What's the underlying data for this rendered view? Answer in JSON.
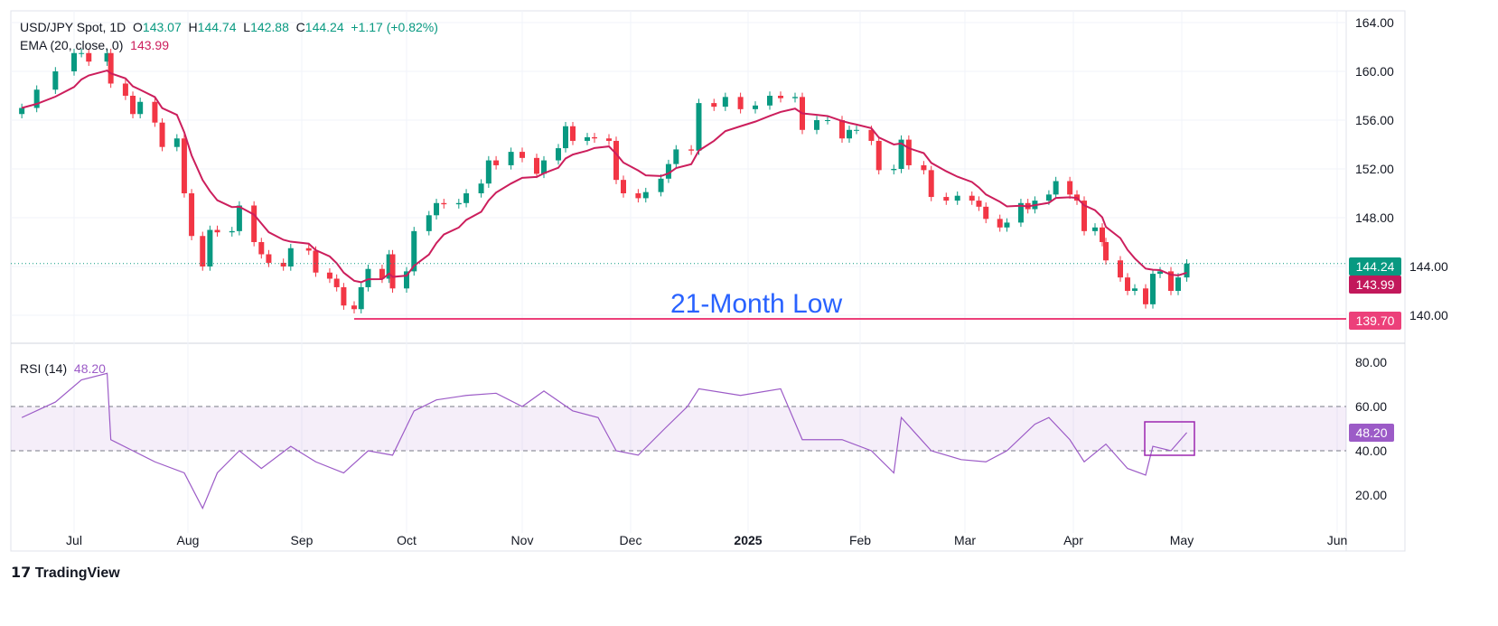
{
  "header": {
    "symbol": "USD/JPY Spot, 1D",
    "open_label": "O",
    "open": "143.07",
    "high_label": "H",
    "high": "144.74",
    "low_label": "L",
    "low": "142.88",
    "close_label": "C",
    "close": "144.24",
    "change": "+1.17 (+0.82%)",
    "ema_label": "EMA (20, close, 0)",
    "ema_value": "143.99",
    "rsi_label": "RSI (14)",
    "rsi_value": "48.20"
  },
  "tags": {
    "last": "144.24",
    "ema": "143.99",
    "support": "139.70",
    "rsi": "48.20"
  },
  "annotation": "21-Month Low",
  "brand": "TradingView",
  "colors": {
    "up": "#089981",
    "down": "#f23645",
    "ema": "#cc1e5c",
    "support": "#ec407a",
    "rsi": "#9c5bc7",
    "annotation": "#2962ff"
  },
  "chart_data": [
    {
      "type": "candlestick",
      "title": "USD/JPY Spot, 1D",
      "ylim": [
        136,
        166
      ],
      "y_ticks": [
        "164.00",
        "160.00",
        "156.00",
        "152.00",
        "148.00",
        "144.00",
        "140.00"
      ],
      "x_ticks": [
        "Jul",
        "Aug",
        "Sep",
        "Oct",
        "Nov",
        "Dec",
        "2025",
        "Feb",
        "Mar",
        "Apr",
        "May",
        "Jun"
      ],
      "support_level": 139.7,
      "closes": [
        [
          "2024-06-17",
          157.0
        ],
        [
          "2024-06-21",
          158.5
        ],
        [
          "2024-06-26",
          160.0
        ],
        [
          "2024-07-01",
          161.5
        ],
        [
          "2024-07-03",
          161.5
        ],
        [
          "2024-07-05",
          160.8
        ],
        [
          "2024-07-10",
          161.5
        ],
        [
          "2024-07-11",
          159.0
        ],
        [
          "2024-07-15",
          158.0
        ],
        [
          "2024-07-17",
          156.5
        ],
        [
          "2024-07-19",
          157.5
        ],
        [
          "2024-07-23",
          155.8
        ],
        [
          "2024-07-25",
          153.8
        ],
        [
          "2024-07-29",
          154.5
        ],
        [
          "2024-07-31",
          150.0
        ],
        [
          "2024-08-02",
          146.5
        ],
        [
          "2024-08-05",
          144.0
        ],
        [
          "2024-08-07",
          147.0
        ],
        [
          "2024-08-09",
          146.8
        ],
        [
          "2024-08-13",
          146.9
        ],
        [
          "2024-08-15",
          149.0
        ],
        [
          "2024-08-19",
          146.0
        ],
        [
          "2024-08-21",
          145.0
        ],
        [
          "2024-08-23",
          144.3
        ],
        [
          "2024-08-27",
          144.0
        ],
        [
          "2024-08-29",
          145.5
        ],
        [
          "2024-09-03",
          145.3
        ],
        [
          "2024-09-05",
          143.5
        ],
        [
          "2024-09-09",
          143.0
        ],
        [
          "2024-09-11",
          142.3
        ],
        [
          "2024-09-13",
          140.8
        ],
        [
          "2024-09-16",
          140.5
        ],
        [
          "2024-09-18",
          142.3
        ],
        [
          "2024-09-20",
          143.8
        ],
        [
          "2024-09-24",
          143.0
        ],
        [
          "2024-09-26",
          145.0
        ],
        [
          "2024-09-27",
          142.2
        ],
        [
          "2024-10-01",
          143.6
        ],
        [
          "2024-10-03",
          146.9
        ],
        [
          "2024-10-07",
          148.2
        ],
        [
          "2024-10-09",
          149.2
        ],
        [
          "2024-10-11",
          149.1
        ],
        [
          "2024-10-15",
          149.2
        ],
        [
          "2024-10-17",
          150.0
        ],
        [
          "2024-10-21",
          150.8
        ],
        [
          "2024-10-23",
          152.7
        ],
        [
          "2024-10-25",
          152.3
        ],
        [
          "2024-10-29",
          153.4
        ],
        [
          "2024-11-01",
          152.9
        ],
        [
          "2024-11-05",
          151.6
        ],
        [
          "2024-11-07",
          152.7
        ],
        [
          "2024-11-11",
          153.7
        ],
        [
          "2024-11-13",
          155.5
        ],
        [
          "2024-11-15",
          154.3
        ],
        [
          "2024-11-19",
          154.6
        ],
        [
          "2024-11-21",
          154.5
        ],
        [
          "2024-11-25",
          154.3
        ],
        [
          "2024-11-27",
          151.1
        ],
        [
          "2024-11-29",
          150.0
        ],
        [
          "2024-12-03",
          149.6
        ],
        [
          "2024-12-05",
          150.1
        ],
        [
          "2024-12-09",
          151.2
        ],
        [
          "2024-12-11",
          152.4
        ],
        [
          "2024-12-13",
          153.6
        ],
        [
          "2024-12-17",
          153.5
        ],
        [
          "2024-12-19",
          157.4
        ],
        [
          "2024-12-23",
          157.1
        ],
        [
          "2024-12-26",
          157.9
        ],
        [
          "2024-12-30",
          156.9
        ],
        [
          "2025-01-03",
          157.2
        ],
        [
          "2025-01-07",
          158.0
        ],
        [
          "2025-01-10",
          157.8
        ],
        [
          "2025-01-14",
          157.9
        ],
        [
          "2025-01-16",
          155.2
        ],
        [
          "2025-01-20",
          156.0
        ],
        [
          "2025-01-23",
          156.0
        ],
        [
          "2025-01-27",
          154.5
        ],
        [
          "2025-01-29",
          155.2
        ],
        [
          "2025-01-31",
          155.2
        ],
        [
          "2025-02-04",
          154.3
        ],
        [
          "2025-02-06",
          151.9
        ],
        [
          "2025-02-10",
          152.0
        ],
        [
          "2025-02-12",
          154.4
        ],
        [
          "2025-02-14",
          152.3
        ],
        [
          "2025-02-18",
          151.9
        ],
        [
          "2025-02-20",
          149.7
        ],
        [
          "2025-02-24",
          149.4
        ],
        [
          "2025-02-27",
          149.8
        ],
        [
          "2025-03-03",
          149.4
        ],
        [
          "2025-03-05",
          148.9
        ],
        [
          "2025-03-07",
          147.9
        ],
        [
          "2025-03-11",
          147.2
        ],
        [
          "2025-03-13",
          147.6
        ],
        [
          "2025-03-17",
          149.2
        ],
        [
          "2025-03-19",
          148.7
        ],
        [
          "2025-03-21",
          149.4
        ],
        [
          "2025-03-25",
          149.9
        ],
        [
          "2025-03-27",
          151.0
        ],
        [
          "2025-03-31",
          149.9
        ],
        [
          "2025-04-02",
          149.4
        ],
        [
          "2025-04-04",
          146.9
        ],
        [
          "2025-04-07",
          147.2
        ],
        [
          "2025-04-09",
          146.0
        ],
        [
          "2025-04-10",
          144.5
        ],
        [
          "2025-04-14",
          143.1
        ],
        [
          "2025-04-16",
          142.0
        ],
        [
          "2025-04-18",
          142.2
        ],
        [
          "2025-04-21",
          140.9
        ],
        [
          "2025-04-23",
          143.4
        ],
        [
          "2025-04-25",
          143.6
        ],
        [
          "2025-04-28",
          142.0
        ],
        [
          "2025-04-30",
          143.1
        ],
        [
          "2025-05-02",
          144.24
        ]
      ]
    },
    {
      "type": "line",
      "title": "RSI (14)",
      "ylim": [
        5,
        85
      ],
      "y_ticks": [
        "80.00",
        "60.00",
        "40.00",
        "20.00"
      ],
      "band": [
        40,
        60
      ],
      "values": [
        [
          "2024-06-17",
          55
        ],
        [
          "2024-06-26",
          62
        ],
        [
          "2024-07-03",
          72
        ],
        [
          "2024-07-10",
          75
        ],
        [
          "2024-07-11",
          45
        ],
        [
          "2024-07-17",
          40
        ],
        [
          "2024-07-23",
          35
        ],
        [
          "2024-07-31",
          30
        ],
        [
          "2024-08-05",
          14
        ],
        [
          "2024-08-09",
          30
        ],
        [
          "2024-08-15",
          40
        ],
        [
          "2024-08-21",
          32
        ],
        [
          "2024-08-29",
          42
        ],
        [
          "2024-09-05",
          35
        ],
        [
          "2024-09-13",
          30
        ],
        [
          "2024-09-20",
          40
        ],
        [
          "2024-09-27",
          38
        ],
        [
          "2024-10-03",
          58
        ],
        [
          "2024-10-09",
          63
        ],
        [
          "2024-10-17",
          65
        ],
        [
          "2024-10-25",
          66
        ],
        [
          "2024-11-01",
          60
        ],
        [
          "2024-11-07",
          67
        ],
        [
          "2024-11-15",
          58
        ],
        [
          "2024-11-22",
          55
        ],
        [
          "2024-11-27",
          40
        ],
        [
          "2024-12-03",
          38
        ],
        [
          "2024-12-10",
          50
        ],
        [
          "2024-12-16",
          60
        ],
        [
          "2024-12-19",
          68
        ],
        [
          "2024-12-30",
          65
        ],
        [
          "2025-01-10",
          68
        ],
        [
          "2025-01-16",
          45
        ],
        [
          "2025-01-27",
          45
        ],
        [
          "2025-02-04",
          40
        ],
        [
          "2025-02-10",
          30
        ],
        [
          "2025-02-12",
          55
        ],
        [
          "2025-02-20",
          40
        ],
        [
          "2025-02-28",
          36
        ],
        [
          "2025-03-07",
          35
        ],
        [
          "2025-03-13",
          40
        ],
        [
          "2025-03-21",
          52
        ],
        [
          "2025-03-25",
          55
        ],
        [
          "2025-03-31",
          45
        ],
        [
          "2025-04-04",
          35
        ],
        [
          "2025-04-10",
          43
        ],
        [
          "2025-04-16",
          32
        ],
        [
          "2025-04-21",
          29
        ],
        [
          "2025-04-23",
          42
        ],
        [
          "2025-04-28",
          40
        ],
        [
          "2025-05-02",
          48.2
        ]
      ]
    }
  ]
}
